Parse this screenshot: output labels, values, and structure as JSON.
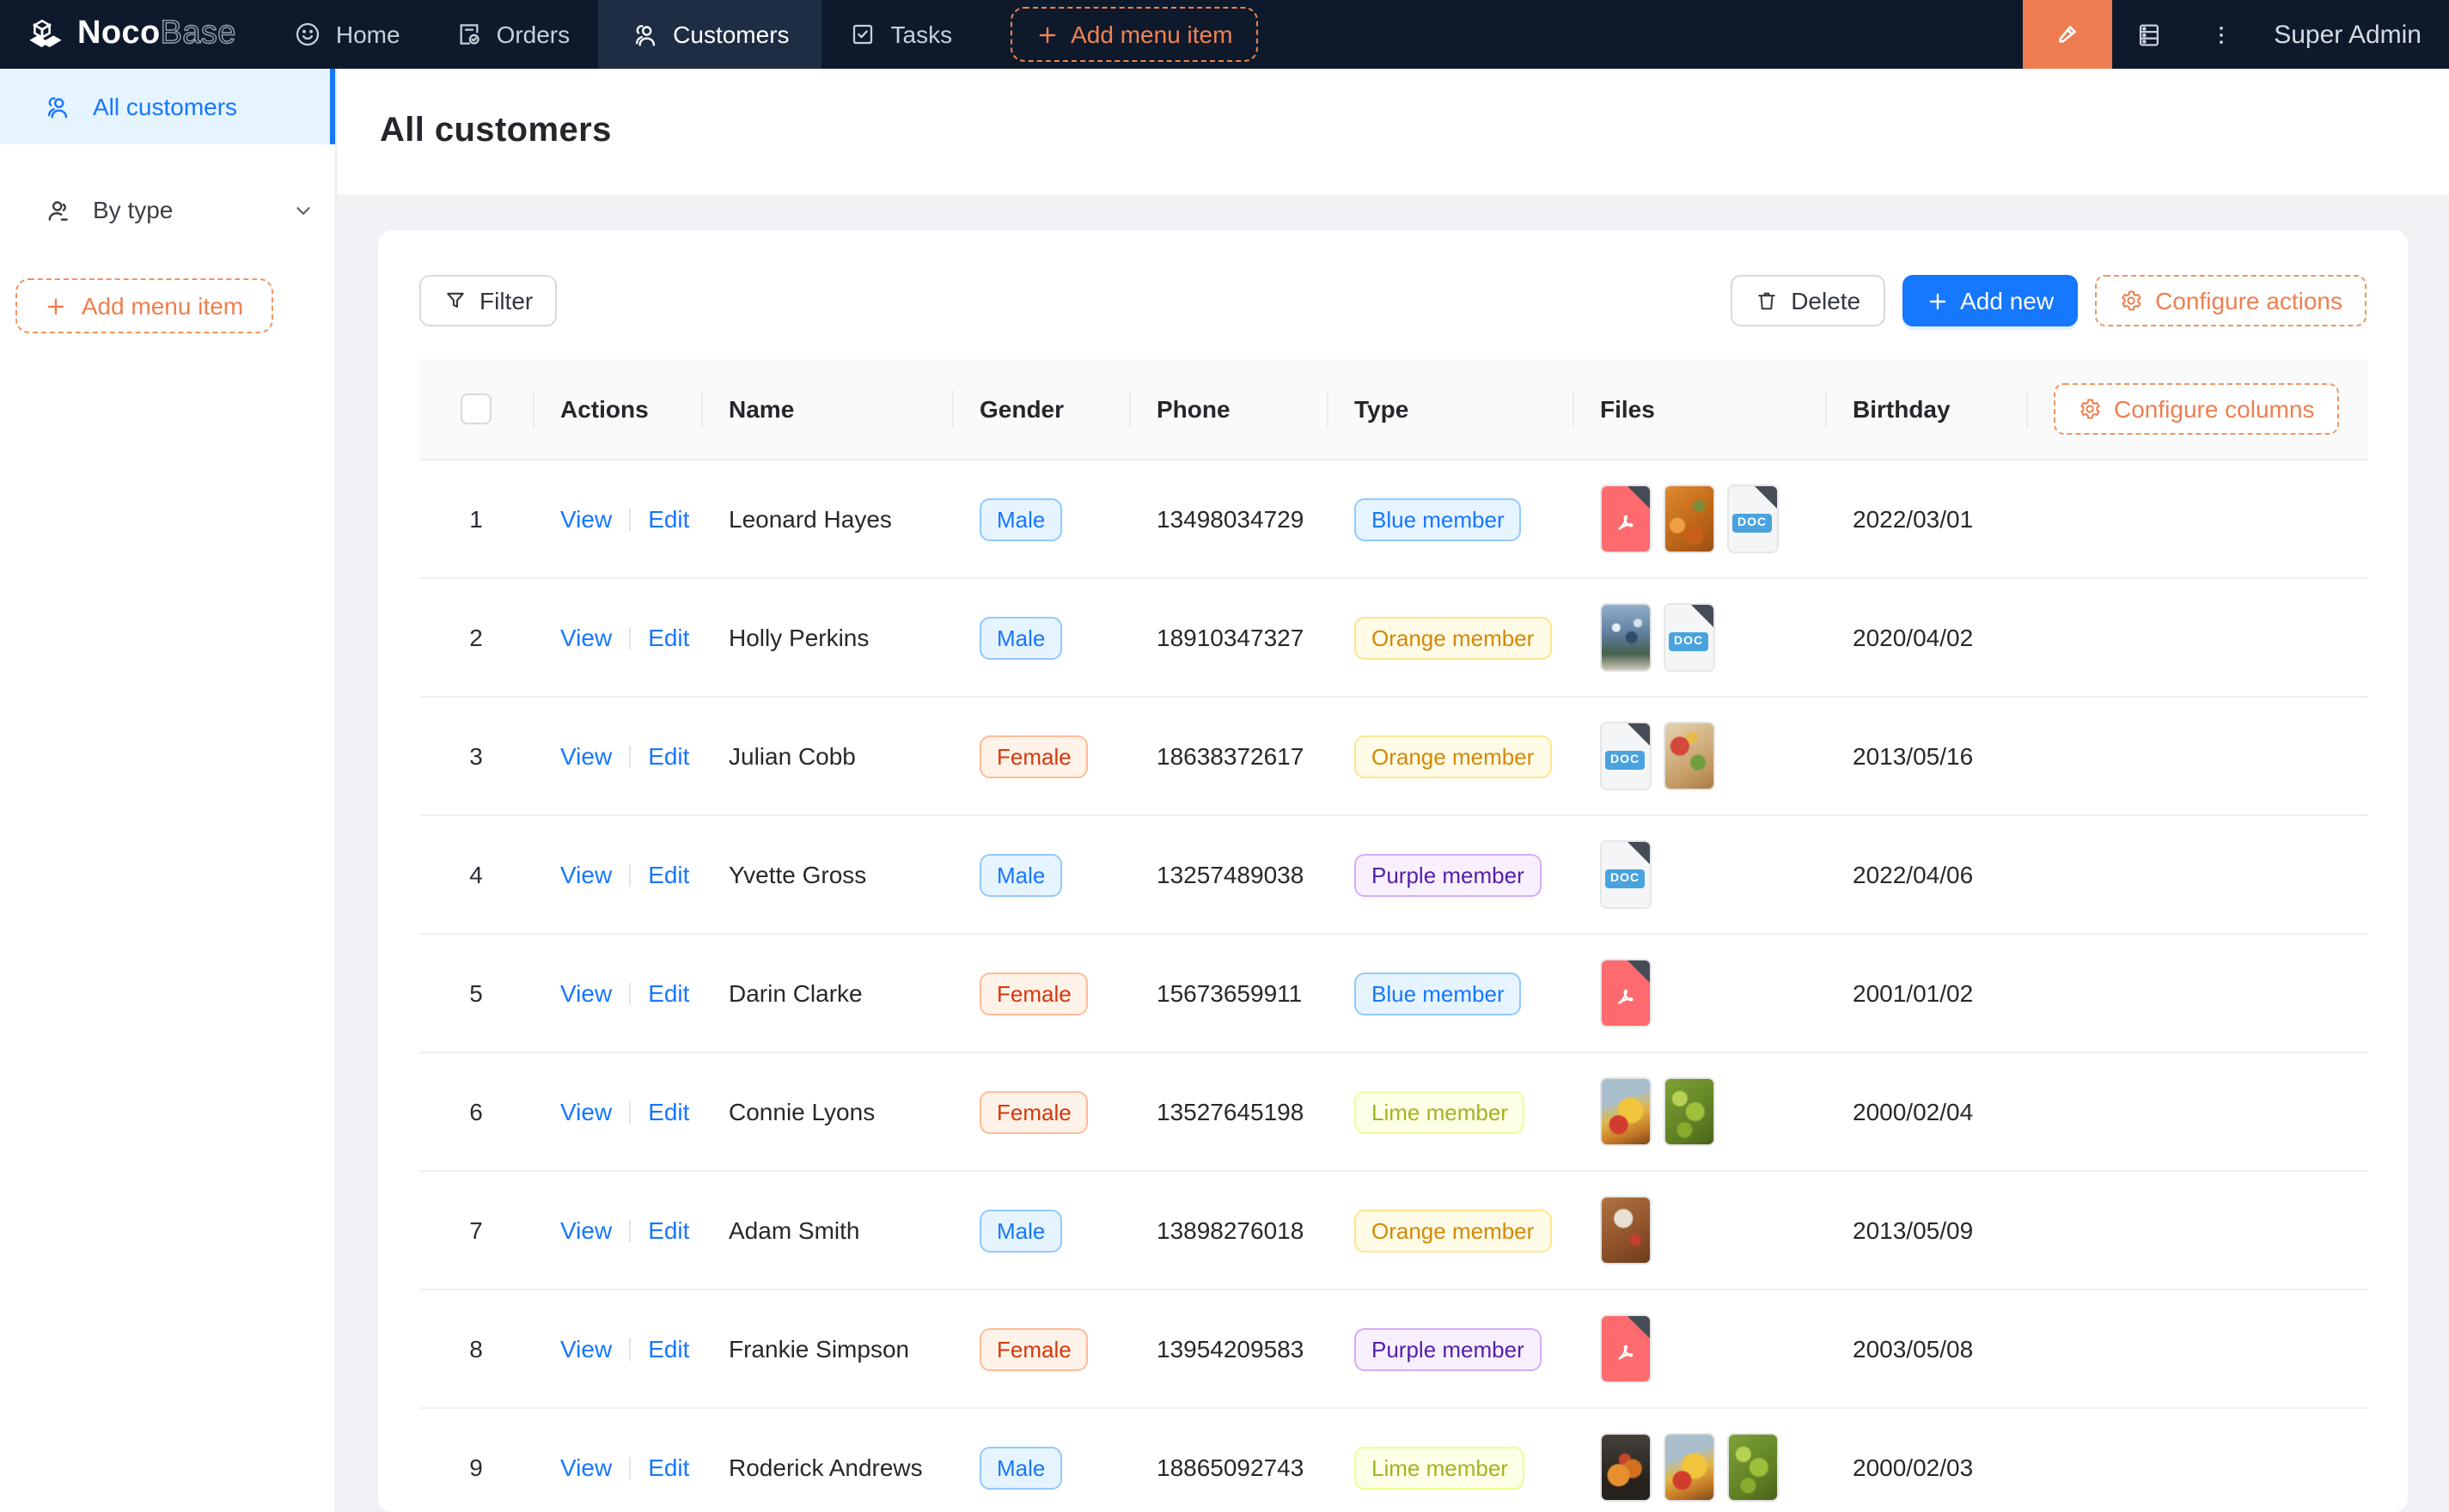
{
  "nav": {
    "logo": {
      "noco": "Noco",
      "base": "Base"
    },
    "items": [
      {
        "label": "Home",
        "icon": "smile-icon",
        "active": false
      },
      {
        "label": "Orders",
        "icon": "orders-icon",
        "active": false
      },
      {
        "label": "Customers",
        "icon": "customers-icon",
        "active": true
      },
      {
        "label": "Tasks",
        "icon": "tasks-icon",
        "active": false
      }
    ],
    "add_menu_item_label": "Add menu item",
    "user": "Super Admin"
  },
  "sidebar": {
    "items": [
      {
        "label": "All customers",
        "active": true
      },
      {
        "label": "By type",
        "active": false,
        "has_submenu": true
      }
    ],
    "add_menu_item_label": "Add menu item"
  },
  "page": {
    "title": "All customers"
  },
  "toolbar": {
    "filter_label": "Filter",
    "delete_label": "Delete",
    "add_new_label": "Add new",
    "configure_actions_label": "Configure actions"
  },
  "table": {
    "configure_columns_label": "Configure columns",
    "columns": [
      "Actions",
      "Name",
      "Gender",
      "Phone",
      "Type",
      "Files",
      "Birthday"
    ],
    "action_labels": [
      "View",
      "Edit"
    ],
    "doc_label": "DOC",
    "rows": [
      {
        "index": "1",
        "name": "Leonard Hayes",
        "gender": "Male",
        "gender_color": "blue",
        "phone": "13498034729",
        "type": "Blue member",
        "type_color": "blue",
        "files": [
          {
            "kind": "pdf"
          },
          {
            "kind": "image",
            "photo": "orange-food"
          },
          {
            "kind": "doc"
          }
        ],
        "birthday": "2022/03/01"
      },
      {
        "index": "2",
        "name": "Holly Perkins",
        "gender": "Male",
        "gender_color": "blue",
        "phone": "18910347327",
        "type": "Orange member",
        "type_color": "gold",
        "files": [
          {
            "kind": "image",
            "photo": "crowd"
          },
          {
            "kind": "doc"
          }
        ],
        "birthday": "2020/04/02"
      },
      {
        "index": "3",
        "name": "Julian Cobb",
        "gender": "Female",
        "gender_color": "volcano",
        "phone": "18638372617",
        "type": "Orange member",
        "type_color": "gold",
        "files": [
          {
            "kind": "doc"
          },
          {
            "kind": "image",
            "photo": "platter"
          }
        ],
        "birthday": "2013/05/16"
      },
      {
        "index": "4",
        "name": "Yvette Gross",
        "gender": "Male",
        "gender_color": "blue",
        "phone": "13257489038",
        "type": "Purple member",
        "type_color": "purple",
        "files": [
          {
            "kind": "doc"
          }
        ],
        "birthday": "2022/04/06"
      },
      {
        "index": "5",
        "name": "Darin Clarke",
        "gender": "Female",
        "gender_color": "volcano",
        "phone": "15673659911",
        "type": "Blue member",
        "type_color": "blue",
        "files": [
          {
            "kind": "pdf"
          }
        ],
        "birthday": "2001/01/02"
      },
      {
        "index": "6",
        "name": "Connie Lyons",
        "gender": "Female",
        "gender_color": "volcano",
        "phone": "13527645198",
        "type": "Lime member",
        "type_color": "lime",
        "files": [
          {
            "kind": "image",
            "photo": "fruit-still"
          },
          {
            "kind": "image",
            "photo": "grapes"
          }
        ],
        "birthday": "2000/02/04"
      },
      {
        "index": "7",
        "name": "Adam Smith",
        "gender": "Male",
        "gender_color": "blue",
        "phone": "13898276018",
        "type": "Orange member",
        "type_color": "gold",
        "files": [
          {
            "kind": "image",
            "photo": "food-table"
          }
        ],
        "birthday": "2013/05/09"
      },
      {
        "index": "8",
        "name": "Frankie Simpson",
        "gender": "Female",
        "gender_color": "volcano",
        "phone": "13954209583",
        "type": "Purple member",
        "type_color": "purple",
        "files": [
          {
            "kind": "pdf"
          }
        ],
        "birthday": "2003/05/08"
      },
      {
        "index": "9",
        "name": "Roderick Andrews",
        "gender": "Male",
        "gender_color": "blue",
        "phone": "18865092743",
        "type": "Lime member",
        "type_color": "lime",
        "files": [
          {
            "kind": "image",
            "photo": "dark-oranges"
          },
          {
            "kind": "image",
            "photo": "fruit-still"
          },
          {
            "kind": "image",
            "photo": "grapes"
          }
        ],
        "birthday": "2000/02/03"
      }
    ]
  },
  "colors": {
    "nav_bg": "#0e1a2c",
    "nav_active_bg": "#1e2c44",
    "accent_orange": "#ee7f50",
    "primary_blue": "#1677ff",
    "sidebar_active_bg": "#e6f4ff",
    "page_bg": "#f0f2f5"
  },
  "tag_colors": {
    "blue": {
      "bg": "#e6f4ff",
      "border": "#91caff",
      "text": "#1677ff"
    },
    "volcano": {
      "bg": "#fff2e8",
      "border": "#ffbb96",
      "text": "#d4380d"
    },
    "gold": {
      "bg": "#fffbe6",
      "border": "#ffe58f",
      "text": "#d48806"
    },
    "purple": {
      "bg": "#f9f0ff",
      "border": "#d3adf7",
      "text": "#531dab"
    },
    "lime": {
      "bg": "#fcffe6",
      "border": "#eaff8f",
      "text": "#a0b520"
    }
  }
}
